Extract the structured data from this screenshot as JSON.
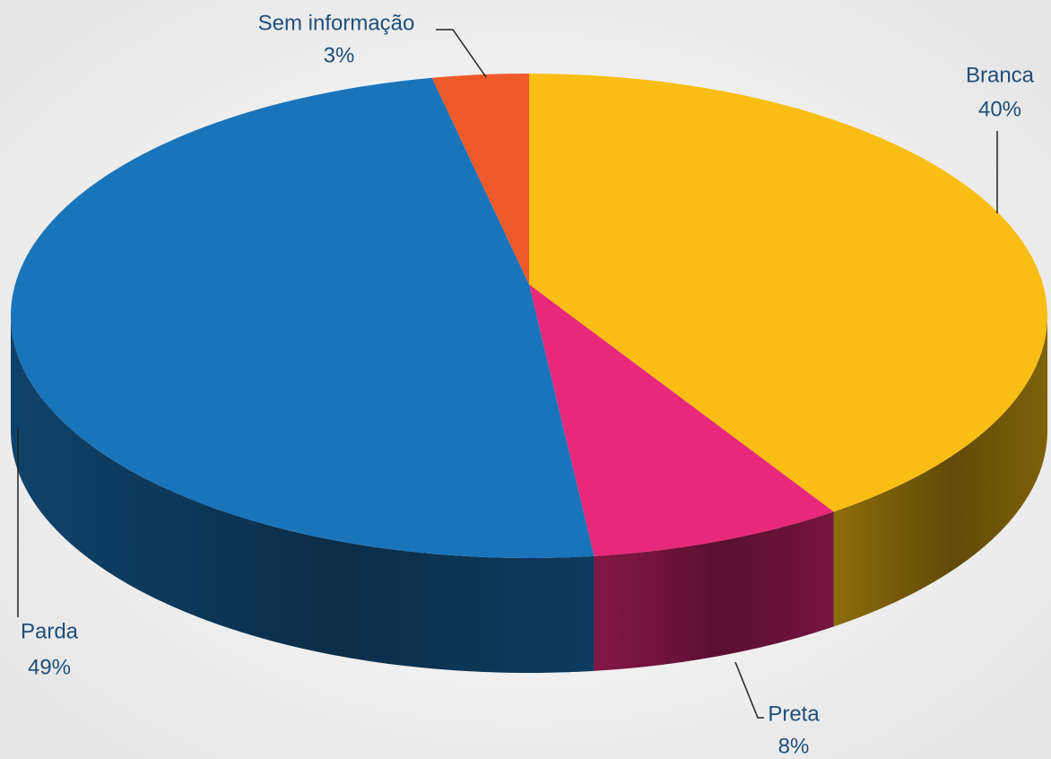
{
  "chart_data": {
    "type": "pie",
    "categories": [
      "Branca",
      "Preta",
      "Parda",
      "Sem informação"
    ],
    "values": [
      40,
      8,
      49,
      3
    ],
    "value_labels": [
      "40%",
      "8%",
      "49%",
      "3%"
    ],
    "colors": [
      "#F9BE14",
      "#E8287A",
      "#1A74BA",
      "#EE5A2A"
    ]
  }
}
